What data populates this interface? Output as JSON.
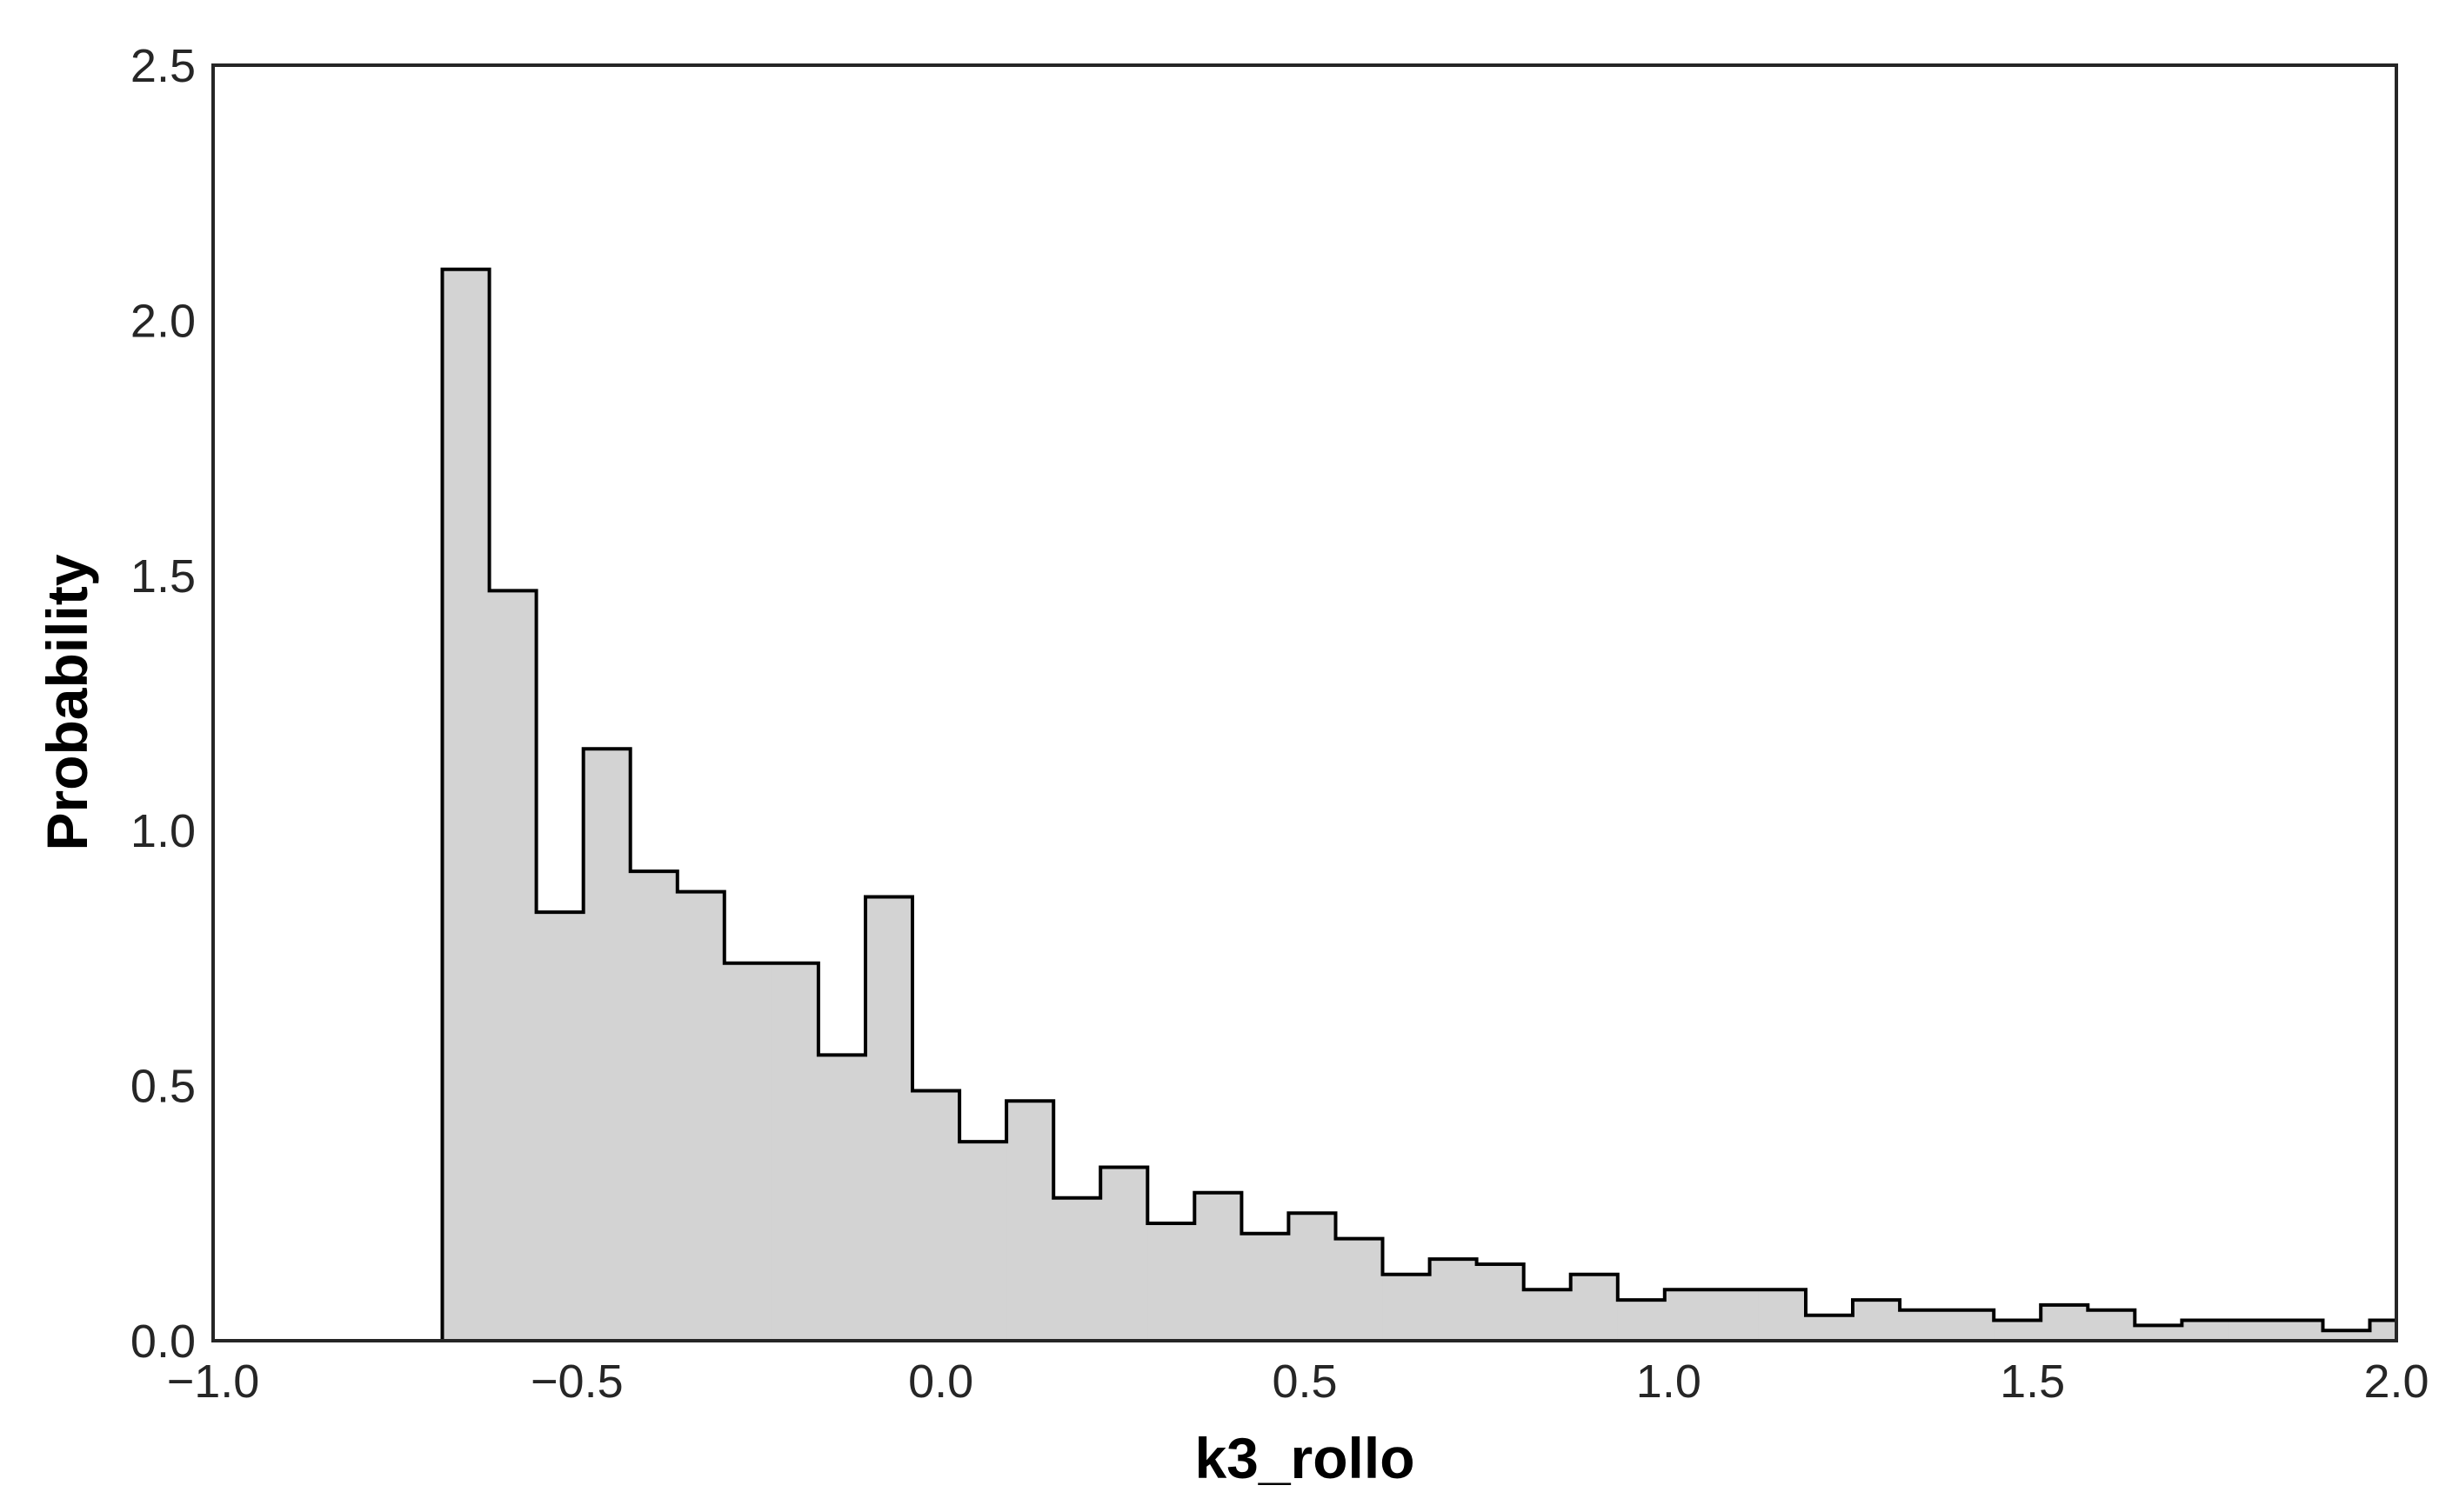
{
  "chart_data": {
    "type": "bar",
    "histogram": true,
    "xlabel": "k3_rollo",
    "ylabel": "Probability",
    "xlim": [
      -1.0,
      2.0
    ],
    "ylim": [
      0.0,
      2.5
    ],
    "xticks": [
      "−1.0",
      "−0.5",
      "0.0",
      "0.5",
      "1.0",
      "1.5",
      "2.0"
    ],
    "yticks": [
      "0.0",
      "0.5",
      "1.0",
      "1.5",
      "2.0",
      "2.5"
    ],
    "grid": false,
    "bin_start": -0.685,
    "bin_width": 0.0646,
    "values": [
      2.1,
      1.47,
      0.84,
      1.16,
      0.92,
      0.88,
      0.74,
      0.74,
      0.56,
      0.87,
      0.49,
      0.39,
      0.47,
      0.28,
      0.34,
      0.23,
      0.29,
      0.21,
      0.25,
      0.2,
      0.13,
      0.16,
      0.15,
      0.1,
      0.13,
      0.08,
      0.1,
      0.1,
      0.1,
      0.05,
      0.08,
      0.06,
      0.06,
      0.04,
      0.07,
      0.06,
      0.03,
      0.04,
      0.04,
      0.04,
      0.02,
      0.04
    ],
    "colors": {
      "fill": "#d3d3d3",
      "edge": "#000000",
      "frame": "#262626"
    }
  }
}
